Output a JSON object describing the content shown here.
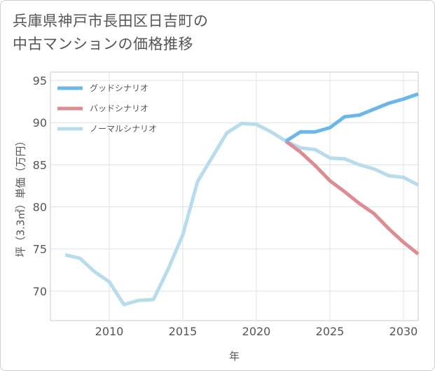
{
  "title_line1": "兵庫県神戸市長田区日吉町の",
  "title_line2": "中古マンションの価格推移",
  "chart_data": {
    "type": "line",
    "xlabel": "年",
    "ylabel": "坪（3.3㎡）単価（万円）",
    "xlim": [
      2006,
      2031
    ],
    "ylim": [
      66.5,
      96
    ],
    "x_ticks": [
      2010,
      2015,
      2020,
      2025,
      2030
    ],
    "y_ticks": [
      70,
      75,
      80,
      85,
      90,
      95
    ],
    "grid": true,
    "legend_position": "top-left",
    "series": [
      {
        "name": "グッドシナリオ",
        "color": "#6bb7ea",
        "x": [
          2022,
          2023,
          2024,
          2025,
          2026,
          2027,
          2028,
          2029,
          2030,
          2031
        ],
        "y": [
          87.8,
          88.9,
          88.9,
          89.4,
          90.7,
          90.9,
          91.6,
          92.3,
          92.8,
          93.4
        ]
      },
      {
        "name": "バッドシナリオ",
        "color": "#de8c94",
        "x": [
          2022,
          2023,
          2024,
          2025,
          2026,
          2027,
          2028,
          2029,
          2030,
          2031
        ],
        "y": [
          87.8,
          86.5,
          84.9,
          83.1,
          81.8,
          80.4,
          79.2,
          77.4,
          75.8,
          74.4
        ]
      },
      {
        "name": "ノーマルシナリオ",
        "color": "#b7dcec",
        "x": [
          2007,
          2008,
          2009,
          2010,
          2011,
          2012,
          2013,
          2014,
          2015,
          2016,
          2017,
          2018,
          2019,
          2020,
          2021,
          2022,
          2023,
          2024,
          2025,
          2026,
          2027,
          2028,
          2029,
          2030,
          2031
        ],
        "y": [
          74.3,
          73.9,
          72.3,
          71.1,
          68.4,
          68.9,
          69.0,
          72.6,
          76.7,
          83.0,
          85.9,
          88.8,
          89.9,
          89.8,
          88.9,
          87.8,
          87.0,
          86.8,
          85.8,
          85.7,
          85.0,
          84.5,
          83.7,
          83.5,
          82.6
        ]
      }
    ]
  }
}
